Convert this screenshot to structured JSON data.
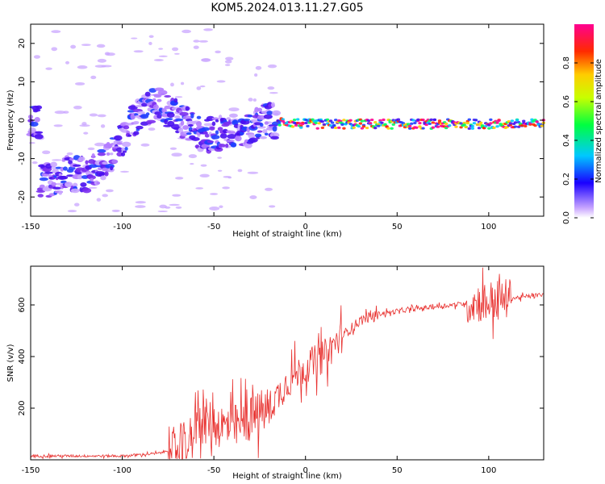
{
  "title": "KOM5.2024.013.11.27.G05",
  "colors": {
    "snr_line": "#e8312f",
    "spectrum_low": "#c9a6ff",
    "spectrum_mid": "#5a1ee6"
  },
  "chart_data": [
    {
      "type": "heatmap",
      "xlabel": "Height of straight line (km)",
      "ylabel": "Frequency (Hz)",
      "xlim": [
        -150,
        130
      ],
      "ylim": [
        -25,
        25
      ],
      "xticks": [
        -150,
        -100,
        -50,
        0,
        50,
        100
      ],
      "yticks": [
        -20,
        -10,
        0,
        10,
        20
      ],
      "colorbar": {
        "label": "Normalized spectral amplitude",
        "range": [
          0,
          1
        ],
        "ticks": [
          "0.0",
          "0.2",
          "0.4",
          "0.6",
          "0.8"
        ],
        "colormap": "rainbow (violet-blue-cyan-green-yellow-red-magenta)"
      },
      "trace": {
        "description": "Doppler frequency ridge vs height",
        "points": [
          {
            "x": -145,
            "y": -16
          },
          {
            "x": -130,
            "y": -14
          },
          {
            "x": -120,
            "y": -14
          },
          {
            "x": -110,
            "y": -12
          },
          {
            "x": -90,
            "y": 2
          },
          {
            "x": -80,
            "y": 4
          },
          {
            "x": -70,
            "y": 1
          },
          {
            "x": -60,
            "y": -3
          },
          {
            "x": -50,
            "y": -4
          },
          {
            "x": -40,
            "y": -3
          },
          {
            "x": -30,
            "y": -2
          },
          {
            "x": -20,
            "y": 0
          },
          {
            "x": 0,
            "y": -1
          },
          {
            "x": 50,
            "y": -1
          },
          {
            "x": 100,
            "y": -1
          },
          {
            "x": 130,
            "y": -1
          }
        ]
      }
    },
    {
      "type": "line",
      "xlabel": "Height of straight line (km)",
      "ylabel": "SNR (v/v)",
      "xlim": [
        -150,
        130
      ],
      "ylim": [
        0,
        750
      ],
      "xticks": [
        -150,
        -100,
        -50,
        0,
        50,
        100
      ],
      "yticks": [
        200,
        400,
        600
      ],
      "series": [
        {
          "envelope": [
            {
              "x": -150,
              "y": 15
            },
            {
              "x": -100,
              "y": 15
            },
            {
              "x": -80,
              "y": 25
            },
            {
              "x": -65,
              "y": 60
            },
            {
              "x": -55,
              "y": 150
            },
            {
              "x": -40,
              "y": 120
            },
            {
              "x": -20,
              "y": 200
            },
            {
              "x": -10,
              "y": 300
            },
            {
              "x": 0,
              "y": 360
            },
            {
              "x": 10,
              "y": 400
            },
            {
              "x": 20,
              "y": 480
            },
            {
              "x": 30,
              "y": 540
            },
            {
              "x": 40,
              "y": 565
            },
            {
              "x": 60,
              "y": 585
            },
            {
              "x": 80,
              "y": 600
            },
            {
              "x": 100,
              "y": 615
            },
            {
              "x": 130,
              "y": 640
            }
          ]
        }
      ]
    }
  ]
}
